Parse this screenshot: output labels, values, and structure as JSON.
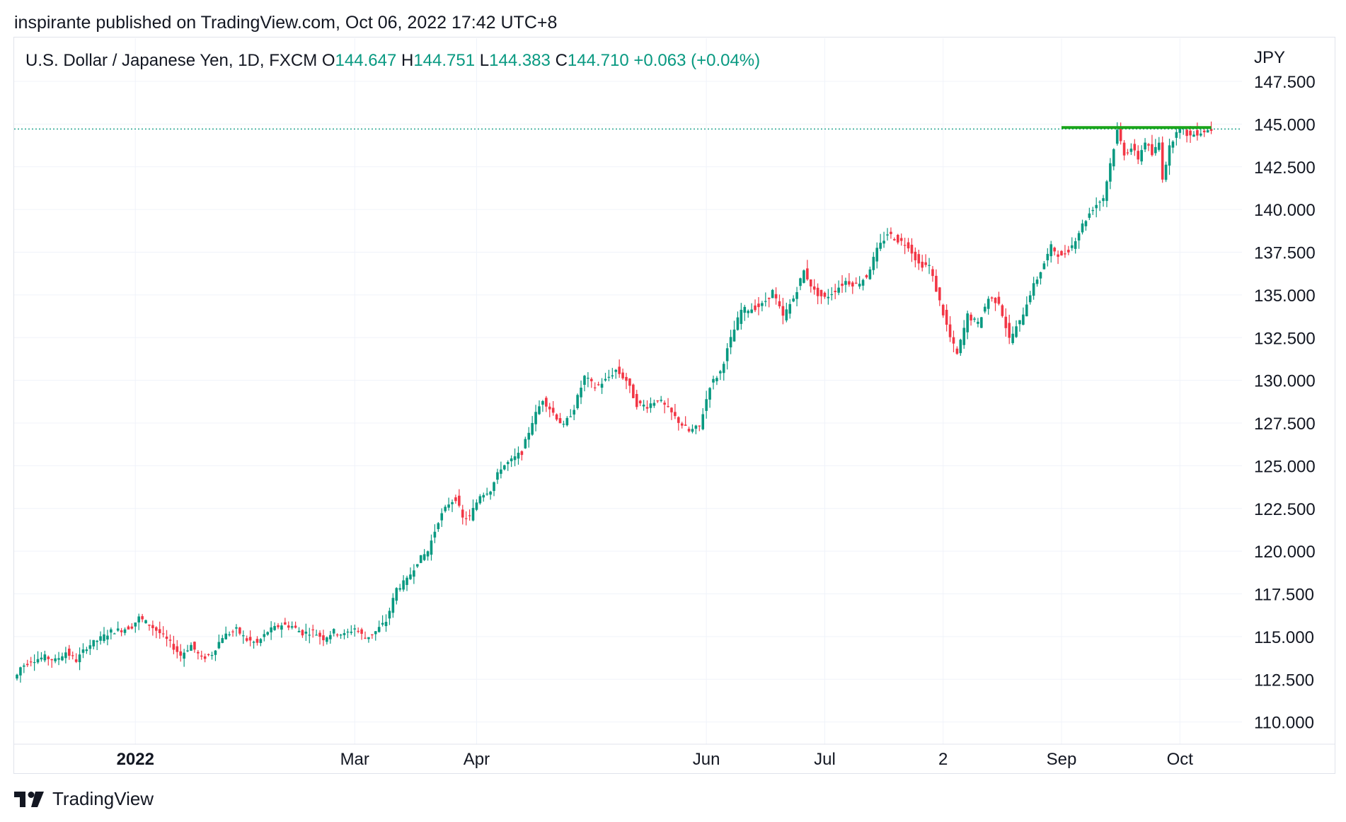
{
  "publisher_line": "inspirante published on TradingView.com, Oct 06, 2022 17:42 UTC+8",
  "legend": {
    "symbol": "U.S. Dollar / Japanese Yen, 1D, FXCM",
    "open_label": "O",
    "open": "144.647",
    "high_label": "H",
    "high": "144.751",
    "low_label": "L",
    "low": "144.383",
    "close_label": "C",
    "close": "144.710",
    "change": "+0.063 (+0.04%)"
  },
  "footer": {
    "brand": "TradingView"
  },
  "colors": {
    "up": "#089981",
    "down": "#f23645",
    "resistance": "#1aa51a",
    "grid": "#f0f3fa",
    "price_line": "#089981"
  },
  "chart_data": {
    "type": "candlestick",
    "currency_label": "JPY",
    "y_ticks": [
      "110.000",
      "112.500",
      "115.000",
      "117.500",
      "120.000",
      "122.500",
      "125.000",
      "127.500",
      "130.000",
      "132.500",
      "135.000",
      "137.500",
      "140.000",
      "142.500",
      "145.000",
      "147.500"
    ],
    "ylim": [
      109.0,
      148.8
    ],
    "x_labels": [
      {
        "label": "2022",
        "bold": true,
        "index": 34
      },
      {
        "label": "Mar",
        "bold": false,
        "index": 97
      },
      {
        "label": "Apr",
        "bold": false,
        "index": 132
      },
      {
        "label": "Jun",
        "bold": false,
        "index": 198
      },
      {
        "label": "Jul",
        "bold": false,
        "index": 232
      },
      {
        "label": "2",
        "bold": false,
        "index": 266
      },
      {
        "label": "Sep",
        "bold": false,
        "index": 300
      },
      {
        "label": "Oct",
        "bold": false,
        "index": 334
      }
    ],
    "close_series": [
      [
        0,
        112.75
      ],
      [
        1,
        113.2
      ],
      [
        4,
        113.6
      ],
      [
        8,
        113.8
      ],
      [
        11,
        113.6
      ],
      [
        14,
        114.1
      ],
      [
        17,
        113.6
      ],
      [
        20,
        114.4
      ],
      [
        24,
        114.9
      ],
      [
        27,
        115.3
      ],
      [
        30,
        115.4
      ],
      [
        33,
        115.6
      ],
      [
        35,
        116.1
      ],
      [
        38,
        115.7
      ],
      [
        41,
        115.2
      ],
      [
        44,
        114.6
      ],
      [
        47,
        113.9
      ],
      [
        50,
        114.5
      ],
      [
        53,
        113.7
      ],
      [
        56,
        114.0
      ],
      [
        59,
        115.0
      ],
      [
        63,
        115.4
      ],
      [
        66,
        114.8
      ],
      [
        69,
        114.6
      ],
      [
        72,
        115.3
      ],
      [
        76,
        115.7
      ],
      [
        79,
        115.6
      ],
      [
        82,
        115.2
      ],
      [
        85,
        115.3
      ],
      [
        88,
        114.9
      ],
      [
        91,
        115.3
      ],
      [
        94,
        115.1
      ],
      [
        97,
        115.5
      ],
      [
        100,
        114.9
      ],
      [
        103,
        115.3
      ],
      [
        106,
        115.9
      ],
      [
        109,
        117.8
      ],
      [
        112,
        118.3
      ],
      [
        115,
        119.4
      ],
      [
        118,
        120.0
      ],
      [
        121,
        121.8
      ],
      [
        124,
        122.8
      ],
      [
        126,
        123.1
      ],
      [
        128,
        121.9
      ],
      [
        130,
        122.0
      ],
      [
        133,
        123.3
      ],
      [
        136,
        123.6
      ],
      [
        139,
        124.9
      ],
      [
        142,
        125.3
      ],
      [
        145,
        125.8
      ],
      [
        148,
        127.6
      ],
      [
        151,
        128.9
      ],
      [
        154,
        128.1
      ],
      [
        157,
        127.3
      ],
      [
        160,
        128.4
      ],
      [
        163,
        130.2
      ],
      [
        166,
        129.6
      ],
      [
        169,
        130.0
      ],
      [
        172,
        130.6
      ],
      [
        175,
        130.0
      ],
      [
        178,
        128.6
      ],
      [
        181,
        128.5
      ],
      [
        184,
        128.9
      ],
      [
        187,
        128.3
      ],
      [
        190,
        127.6
      ],
      [
        193,
        127.0
      ],
      [
        196,
        127.3
      ],
      [
        199,
        129.7
      ],
      [
        202,
        130.5
      ],
      [
        205,
        132.4
      ],
      [
        208,
        134.1
      ],
      [
        211,
        134.2
      ],
      [
        214,
        134.4
      ],
      [
        217,
        135.2
      ],
      [
        220,
        133.7
      ],
      [
        223,
        134.8
      ],
      [
        226,
        136.4
      ],
      [
        229,
        135.2
      ],
      [
        232,
        134.8
      ],
      [
        235,
        135.3
      ],
      [
        238,
        135.8
      ],
      [
        241,
        135.6
      ],
      [
        244,
        136.1
      ],
      [
        247,
        137.6
      ],
      [
        250,
        138.6
      ],
      [
        253,
        138.2
      ],
      [
        256,
        137.9
      ],
      [
        259,
        136.8
      ],
      [
        262,
        136.7
      ],
      [
        265,
        134.6
      ],
      [
        268,
        132.5
      ],
      [
        270,
        131.5
      ],
      [
        273,
        133.8
      ],
      [
        276,
        133.3
      ],
      [
        279,
        134.8
      ],
      [
        282,
        134.6
      ],
      [
        285,
        132.4
      ],
      [
        288,
        133.4
      ],
      [
        291,
        135.1
      ],
      [
        294,
        136.4
      ],
      [
        297,
        137.8
      ],
      [
        300,
        137.2
      ],
      [
        303,
        137.9
      ],
      [
        306,
        139.1
      ],
      [
        309,
        140.1
      ],
      [
        312,
        140.7
      ],
      [
        314,
        142.7
      ],
      [
        316,
        144.6
      ],
      [
        318,
        143.3
      ],
      [
        320,
        143.6
      ],
      [
        322,
        143.0
      ],
      [
        324,
        144.0
      ],
      [
        326,
        143.2
      ],
      [
        328,
        143.9
      ],
      [
        329,
        141.9
      ],
      [
        331,
        143.6
      ],
      [
        333,
        144.7
      ],
      [
        335,
        144.6
      ],
      [
        337,
        144.3
      ],
      [
        339,
        144.5
      ],
      [
        341,
        144.6
      ],
      [
        343,
        144.7
      ]
    ],
    "resistance_level": 144.8,
    "resistance_span_index": [
      300,
      343
    ],
    "last_price": 144.71
  }
}
